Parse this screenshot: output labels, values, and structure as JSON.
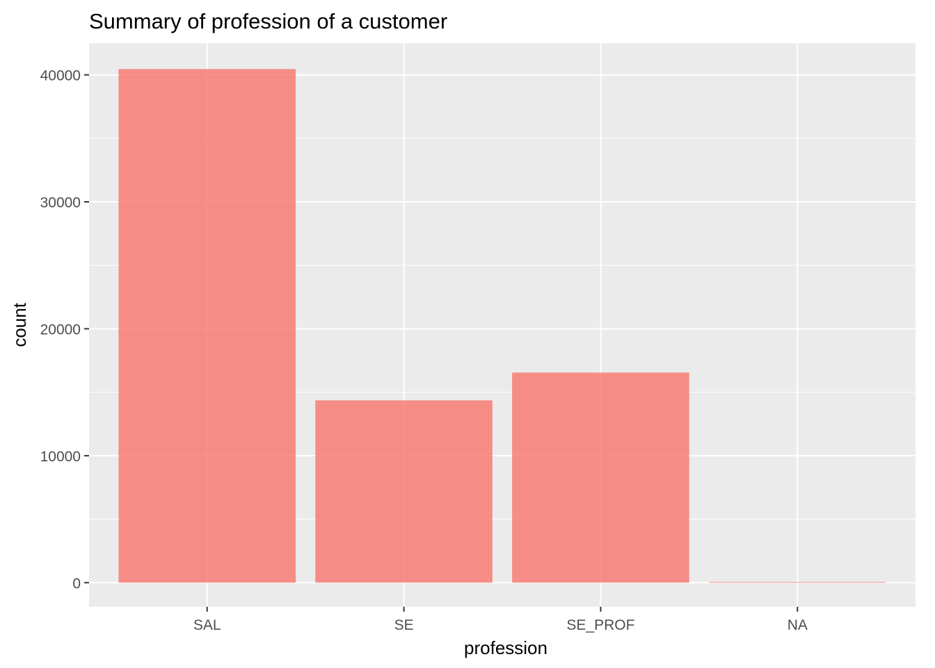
{
  "chart_data": {
    "type": "bar",
    "title": "Summary of profession of a customer",
    "xlabel": "profession",
    "ylabel": "count",
    "categories": [
      "SAL",
      "SE",
      "SE_PROF",
      "NA"
    ],
    "values": [
      40460,
      14360,
      16550,
      50
    ],
    "ylim": [
      -1900,
      42500
    ],
    "yticks": [
      0,
      10000,
      20000,
      30000,
      40000
    ],
    "ytick_labels": [
      "0",
      "10000",
      "20000",
      "30000",
      "40000"
    ],
    "grid": true,
    "legend": "none",
    "colors": {
      "bar": "#f8766d",
      "bar_opacity": 0.8,
      "panel_background": "#ebebeb",
      "grid": "#ffffff"
    }
  }
}
